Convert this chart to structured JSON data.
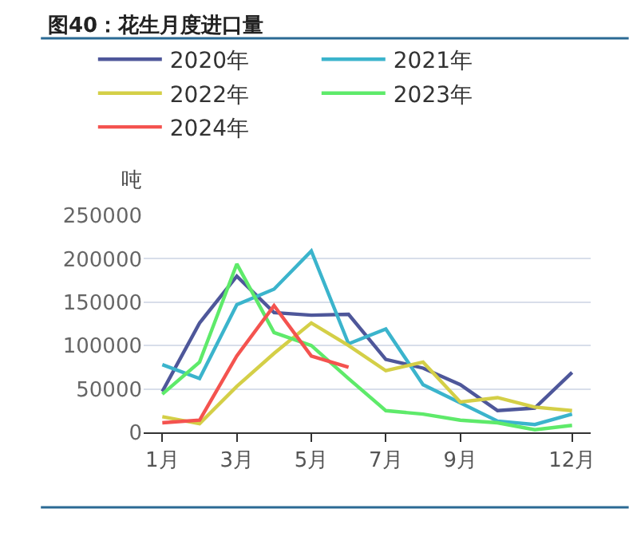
{
  "chart_data": {
    "type": "line",
    "title": "图40：花生月度进口量",
    "ylabel": "吨",
    "categories": [
      "1月",
      null,
      "3月",
      null,
      "5月",
      null,
      "7月",
      null,
      "9月",
      null,
      null,
      "12月"
    ],
    "series": [
      {
        "name": "2020年",
        "color": "#4e579a",
        "values": [
          47000,
          126000,
          180000,
          138000,
          135000,
          136000,
          84000,
          74000,
          55000,
          25000,
          28000,
          69000
        ]
      },
      {
        "name": "2021年",
        "color": "#3bb4cc",
        "values": [
          78000,
          62000,
          147000,
          165000,
          209000,
          102000,
          119000,
          55000,
          34000,
          13000,
          9000,
          21000
        ]
      },
      {
        "name": "2022年",
        "color": "#d4cf47",
        "values": [
          18000,
          10000,
          53000,
          91000,
          126000,
          100000,
          71000,
          81000,
          35000,
          40000,
          29000,
          25000
        ]
      },
      {
        "name": "2023年",
        "color": "#5eea6a",
        "values": [
          44000,
          81000,
          194000,
          115000,
          100000,
          62000,
          25000,
          21000,
          14000,
          11000,
          3000,
          8000
        ]
      },
      {
        "name": "2024年",
        "color": "#f4534f",
        "values": [
          11000,
          14000,
          88000,
          146000,
          88000,
          75000,
          null,
          null,
          null,
          null,
          null,
          null
        ]
      }
    ],
    "ylim": [
      0,
      250000
    ],
    "yticks": [
      0,
      50000,
      100000,
      150000,
      200000,
      250000
    ],
    "grid": "y",
    "legend": "top",
    "marker": "none",
    "line_style": "solid"
  }
}
